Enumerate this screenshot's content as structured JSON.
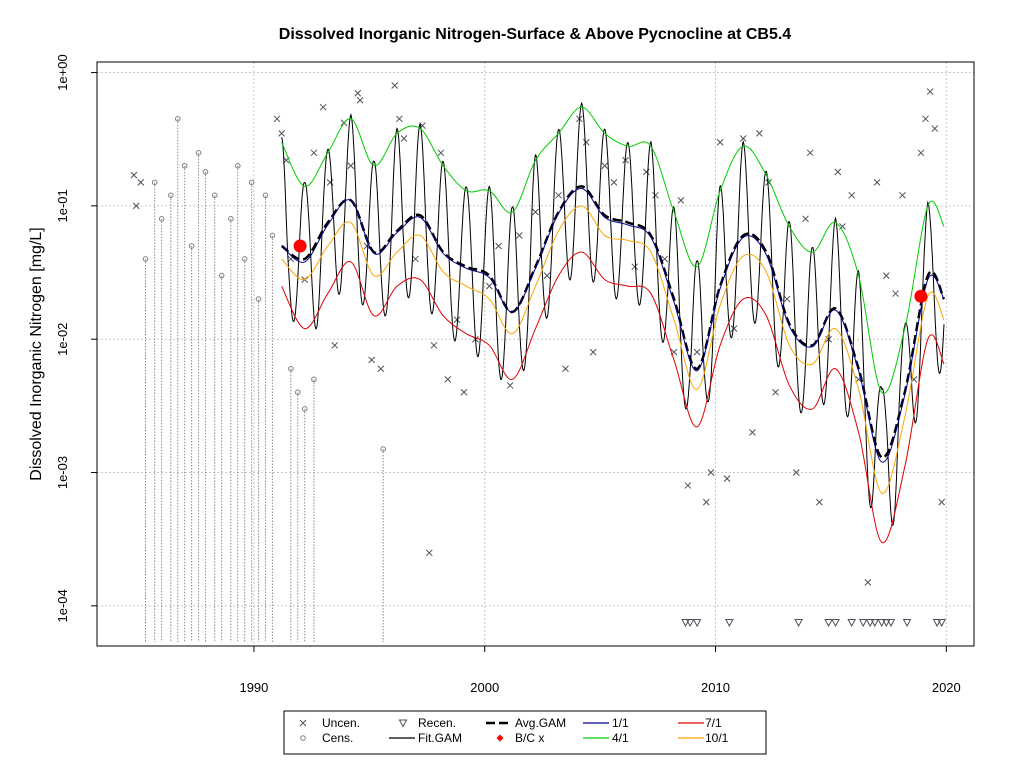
{
  "chart_data": {
    "type": "line",
    "title": "Dissolved Inorganic Nitrogen-Surface & Above Pycnocline at CB5.4",
    "xlabel": "",
    "ylabel": "Dissolved Inorganic Nitrogen [mg/L]",
    "xlim": [
      1983.2,
      2021.2
    ],
    "ylim": [
      5e-05,
      1.2
    ],
    "y_scale": "log",
    "grid": true,
    "legend_position": "bottom",
    "x_ticks": [
      1990,
      2000,
      2010,
      2020
    ],
    "x_tick_labels": [
      "1990",
      "2000",
      "2010",
      "2020"
    ],
    "y_ticks": [
      1,
      0.1,
      0.01,
      0.001,
      0.0001
    ],
    "y_tick_labels": [
      "1e+00",
      "1e-01",
      "1e-02",
      "1e-03",
      "1e-04"
    ],
    "colors": {
      "uncensored": "#505060",
      "censored": "#808080",
      "recensored": "#505060",
      "avg_gam": "#000000",
      "fit_gam": "#000000",
      "bc_points": "#ff0000",
      "q_1_1": "#00008b",
      "q_4_1": "#00cc00",
      "q_7_1": "#e00000",
      "q_10_1": "#ffa500"
    },
    "legend": [
      {
        "label": "Uncen.",
        "symbol": "x-icon"
      },
      {
        "label": "Cens.",
        "symbol": "circle-icon"
      },
      {
        "label": "Recen.",
        "symbol": "triangle-down-icon"
      },
      {
        "label": "Fit.GAM",
        "symbol": "line-icon"
      },
      {
        "label": "Avg.GAM",
        "symbol": "dashed-line-icon"
      },
      {
        "label": "B/C x",
        "symbol": "diamond-icon"
      },
      {
        "label": "1/1",
        "symbol": "line-icon"
      },
      {
        "label": "4/1",
        "symbol": "line-icon"
      },
      {
        "label": "7/1",
        "symbol": "line-icon"
      },
      {
        "label": "10/1",
        "symbol": "line-icon"
      }
    ],
    "bc_points": [
      {
        "x": 1992.0,
        "y": 0.05
      },
      {
        "x": 2018.9,
        "y": 0.021
      }
    ],
    "baseline_years": [
      1991.2,
      1992.2,
      1993.2,
      1994.2,
      1995.2,
      1996.2,
      1997.2,
      1998.2,
      1999.2,
      2000.2,
      2001.2,
      2002.2,
      2003.2,
      2004.2,
      2005.2,
      2006.2,
      2007.2,
      2008.2,
      2009.2,
      2010.2,
      2011.2,
      2012.2,
      2013.2,
      2014.2,
      2015.2,
      2016.2,
      2017.2,
      2018.2,
      2019.2,
      2019.9
    ],
    "series": [
      {
        "name": "Avg.GAM",
        "key": "avg",
        "x": [
          1991.2,
          1992.2,
          1993.2,
          1994.2,
          1995.2,
          1996.2,
          1997.2,
          1998.2,
          1999.2,
          2000.2,
          2001.2,
          2002.2,
          2003.2,
          2004.2,
          2005.2,
          2006.2,
          2007.2,
          2008.2,
          2009.2,
          2010.2,
          2011.2,
          2012.2,
          2013.2,
          2014.2,
          2015.2,
          2016.2,
          2017.2,
          2018.2,
          2019.2,
          2019.9
        ],
        "y": [
          0.05,
          0.04,
          0.075,
          0.11,
          0.045,
          0.065,
          0.085,
          0.045,
          0.035,
          0.03,
          0.016,
          0.035,
          0.09,
          0.14,
          0.085,
          0.075,
          0.06,
          0.02,
          0.006,
          0.025,
          0.06,
          0.045,
          0.013,
          0.009,
          0.017,
          0.006,
          0.0013,
          0.004,
          0.03,
          0.02
        ]
      },
      {
        "name": "1/1",
        "key": "q11",
        "x": [
          1991.2,
          1992.2,
          1993.2,
          1994.2,
          1995.2,
          1996.2,
          1997.2,
          1998.2,
          1999.2,
          2000.2,
          2001.2,
          2002.2,
          2003.2,
          2004.2,
          2005.2,
          2006.2,
          2007.2,
          2008.2,
          2009.2,
          2010.2,
          2011.2,
          2012.2,
          2013.2,
          2014.2,
          2015.2,
          2016.2,
          2017.2,
          2018.2,
          2019.2,
          2019.9
        ],
        "y": [
          0.05,
          0.038,
          0.072,
          0.11,
          0.044,
          0.063,
          0.082,
          0.044,
          0.034,
          0.029,
          0.016,
          0.034,
          0.088,
          0.135,
          0.082,
          0.072,
          0.058,
          0.019,
          0.0058,
          0.024,
          0.058,
          0.043,
          0.0125,
          0.0088,
          0.0165,
          0.0058,
          0.0012,
          0.0038,
          0.028,
          0.02
        ]
      },
      {
        "name": "4/1",
        "key": "q41",
        "x": [
          1991.2,
          1992.2,
          1993.2,
          1994.2,
          1995.2,
          1996.2,
          1997.2,
          1998.2,
          1999.2,
          2000.2,
          2001.2,
          2002.2,
          2003.2,
          2004.2,
          2005.2,
          2006.2,
          2007.2,
          2008.2,
          2009.2,
          2010.2,
          2011.2,
          2012.2,
          2013.2,
          2014.2,
          2015.2,
          2016.2,
          2017.2,
          2018.2,
          2019.2,
          2019.9
        ],
        "y": [
          0.3,
          0.14,
          0.25,
          0.45,
          0.2,
          0.35,
          0.38,
          0.2,
          0.13,
          0.13,
          0.09,
          0.22,
          0.35,
          0.55,
          0.35,
          0.28,
          0.28,
          0.09,
          0.035,
          0.13,
          0.28,
          0.17,
          0.07,
          0.045,
          0.075,
          0.03,
          0.004,
          0.012,
          0.1,
          0.07
        ]
      },
      {
        "name": "7/1",
        "key": "q71",
        "x": [
          1991.2,
          1992.2,
          1993.2,
          1994.2,
          1995.2,
          1996.2,
          1997.2,
          1998.2,
          1999.2,
          2000.2,
          2001.2,
          2002.2,
          2003.2,
          2004.2,
          2005.2,
          2006.2,
          2007.2,
          2008.2,
          2009.2,
          2010.2,
          2011.2,
          2012.2,
          2013.2,
          2014.2,
          2015.2,
          2016.2,
          2017.2,
          2018.2,
          2019.2,
          2019.9
        ],
        "y": [
          0.025,
          0.012,
          0.022,
          0.038,
          0.015,
          0.025,
          0.028,
          0.015,
          0.011,
          0.009,
          0.005,
          0.012,
          0.03,
          0.045,
          0.028,
          0.025,
          0.022,
          0.007,
          0.0022,
          0.009,
          0.02,
          0.015,
          0.0045,
          0.003,
          0.006,
          0.002,
          0.0003,
          0.0011,
          0.01,
          0.0065
        ]
      },
      {
        "name": "10/1",
        "key": "q101",
        "x": [
          1991.2,
          1992.2,
          1993.2,
          1994.2,
          1995.2,
          1996.2,
          1997.2,
          1998.2,
          1999.2,
          2000.2,
          2001.2,
          2002.2,
          2003.2,
          2004.2,
          2005.2,
          2006.2,
          2007.2,
          2008.2,
          2009.2,
          2010.2,
          2011.2,
          2012.2,
          2013.2,
          2014.2,
          2015.2,
          2016.2,
          2017.2,
          2018.2,
          2019.2,
          2019.9
        ],
        "y": [
          0.04,
          0.028,
          0.05,
          0.075,
          0.03,
          0.045,
          0.06,
          0.032,
          0.025,
          0.02,
          0.011,
          0.025,
          0.065,
          0.1,
          0.06,
          0.055,
          0.045,
          0.014,
          0.0042,
          0.018,
          0.042,
          0.032,
          0.009,
          0.0065,
          0.012,
          0.0042,
          0.0007,
          0.0026,
          0.021,
          0.014
        ]
      },
      {
        "name": "Fit.GAM",
        "key": "fit",
        "x": [],
        "y": []
      }
    ],
    "uncensored_points": [
      {
        "x": 1984.8,
        "y": 0.17
      },
      {
        "x": 1984.9,
        "y": 0.1
      },
      {
        "x": 1985.1,
        "y": 0.15
      },
      {
        "x": 1991.0,
        "y": 0.45
      },
      {
        "x": 1991.2,
        "y": 0.35
      },
      {
        "x": 1991.4,
        "y": 0.22
      },
      {
        "x": 1991.6,
        "y": 0.04
      },
      {
        "x": 1992.2,
        "y": 0.028
      },
      {
        "x": 1992.6,
        "y": 0.25
      },
      {
        "x": 1993.0,
        "y": 0.55
      },
      {
        "x": 1993.3,
        "y": 0.15
      },
      {
        "x": 1993.5,
        "y": 0.009
      },
      {
        "x": 1993.9,
        "y": 0.42
      },
      {
        "x": 1994.2,
        "y": 0.2
      },
      {
        "x": 1994.5,
        "y": 0.7
      },
      {
        "x": 1994.6,
        "y": 0.62
      },
      {
        "x": 1994.9,
        "y": 0.05
      },
      {
        "x": 1995.1,
        "y": 0.007
      },
      {
        "x": 1995.5,
        "y": 0.006
      },
      {
        "x": 1996.1,
        "y": 0.8
      },
      {
        "x": 1996.3,
        "y": 0.45
      },
      {
        "x": 1996.5,
        "y": 0.32
      },
      {
        "x": 1997.0,
        "y": 0.04
      },
      {
        "x": 1997.3,
        "y": 0.4
      },
      {
        "x": 1997.8,
        "y": 0.009
      },
      {
        "x": 1998.1,
        "y": 0.25
      },
      {
        "x": 1998.4,
        "y": 0.005
      },
      {
        "x": 1998.8,
        "y": 0.014
      },
      {
        "x": 1999.1,
        "y": 0.004
      },
      {
        "x": 1999.6,
        "y": 0.01
      },
      {
        "x": 2000.2,
        "y": 0.025
      },
      {
        "x": 2000.6,
        "y": 0.05
      },
      {
        "x": 2001.1,
        "y": 0.0045
      },
      {
        "x": 2001.5,
        "y": 0.06
      },
      {
        "x": 2002.2,
        "y": 0.09
      },
      {
        "x": 2002.7,
        "y": 0.03
      },
      {
        "x": 2003.2,
        "y": 0.12
      },
      {
        "x": 2003.5,
        "y": 0.006
      },
      {
        "x": 2004.1,
        "y": 0.45
      },
      {
        "x": 2004.4,
        "y": 0.3
      },
      {
        "x": 2004.7,
        "y": 0.008
      },
      {
        "x": 2005.2,
        "y": 0.2
      },
      {
        "x": 2005.6,
        "y": 0.15
      },
      {
        "x": 2006.1,
        "y": 0.22
      },
      {
        "x": 2006.5,
        "y": 0.035
      },
      {
        "x": 2007.0,
        "y": 0.18
      },
      {
        "x": 2007.4,
        "y": 0.12
      },
      {
        "x": 2007.8,
        "y": 0.04
      },
      {
        "x": 2008.2,
        "y": 0.008
      },
      {
        "x": 2008.5,
        "y": 0.11
      },
      {
        "x": 2008.8,
        "y": 0.0008
      },
      {
        "x": 2009.2,
        "y": 0.008
      },
      {
        "x": 2009.6,
        "y": 0.0006
      },
      {
        "x": 2009.8,
        "y": 0.001
      },
      {
        "x": 2010.2,
        "y": 0.3
      },
      {
        "x": 2010.5,
        "y": 0.0009
      },
      {
        "x": 2010.8,
        "y": 0.012
      },
      {
        "x": 2011.2,
        "y": 0.32
      },
      {
        "x": 2011.6,
        "y": 0.002
      },
      {
        "x": 2011.9,
        "y": 0.35
      },
      {
        "x": 2012.3,
        "y": 0.15
      },
      {
        "x": 2012.6,
        "y": 0.004
      },
      {
        "x": 2013.1,
        "y": 0.02
      },
      {
        "x": 2013.5,
        "y": 0.001
      },
      {
        "x": 2013.9,
        "y": 0.08
      },
      {
        "x": 2014.1,
        "y": 0.25
      },
      {
        "x": 2014.5,
        "y": 0.0006
      },
      {
        "x": 2014.9,
        "y": 0.01
      },
      {
        "x": 2015.3,
        "y": 0.18
      },
      {
        "x": 2015.5,
        "y": 0.07
      },
      {
        "x": 2015.9,
        "y": 0.12
      },
      {
        "x": 2016.2,
        "y": 0.005
      },
      {
        "x": 2016.6,
        "y": 0.00015
      },
      {
        "x": 2017.0,
        "y": 0.15
      },
      {
        "x": 2017.4,
        "y": 0.03
      },
      {
        "x": 2017.8,
        "y": 0.022
      },
      {
        "x": 2018.1,
        "y": 0.12
      },
      {
        "x": 2018.6,
        "y": 0.005
      },
      {
        "x": 2018.9,
        "y": 0.25
      },
      {
        "x": 2019.1,
        "y": 0.45
      },
      {
        "x": 2019.3,
        "y": 0.72
      },
      {
        "x": 2019.5,
        "y": 0.38
      },
      {
        "x": 2019.8,
        "y": 0.0006
      },
      {
        "x": 1997.6,
        "y": 0.00025
      }
    ],
    "censored_points": [
      {
        "x": 1985.7,
        "y": 0.15
      },
      {
        "x": 1986.0,
        "y": 0.08
      },
      {
        "x": 1986.4,
        "y": 0.12
      },
      {
        "x": 1986.7,
        "y": 0.45
      },
      {
        "x": 1987.0,
        "y": 0.2
      },
      {
        "x": 1987.3,
        "y": 0.05
      },
      {
        "x": 1987.6,
        "y": 0.25
      },
      {
        "x": 1987.9,
        "y": 0.18
      },
      {
        "x": 1988.3,
        "y": 0.12
      },
      {
        "x": 1988.6,
        "y": 0.03
      },
      {
        "x": 1989.0,
        "y": 0.08
      },
      {
        "x": 1989.3,
        "y": 0.2
      },
      {
        "x": 1989.6,
        "y": 0.04
      },
      {
        "x": 1989.9,
        "y": 0.15
      },
      {
        "x": 1990.2,
        "y": 0.02
      },
      {
        "x": 1990.5,
        "y": 0.12
      },
      {
        "x": 1990.8,
        "y": 0.06
      },
      {
        "x": 1991.6,
        "y": 0.006
      },
      {
        "x": 1991.9,
        "y": 0.004
      },
      {
        "x": 1992.2,
        "y": 0.003
      },
      {
        "x": 1992.6,
        "y": 0.005
      },
      {
        "x": 1995.6,
        "y": 0.0015
      },
      {
        "x": 1985.3,
        "y": 0.04
      }
    ],
    "recensored_points": [
      {
        "x": 2008.7,
        "y": 7.5e-05
      },
      {
        "x": 2008.9,
        "y": 7.5e-05
      },
      {
        "x": 2009.2,
        "y": 7.5e-05
      },
      {
        "x": 2010.6,
        "y": 7.5e-05
      },
      {
        "x": 2013.6,
        "y": 7.5e-05
      },
      {
        "x": 2014.9,
        "y": 7.5e-05
      },
      {
        "x": 2015.2,
        "y": 7.5e-05
      },
      {
        "x": 2015.9,
        "y": 7.5e-05
      },
      {
        "x": 2016.4,
        "y": 7.5e-05
      },
      {
        "x": 2016.7,
        "y": 7.5e-05
      },
      {
        "x": 2016.9,
        "y": 7.5e-05
      },
      {
        "x": 2017.2,
        "y": 7.5e-05
      },
      {
        "x": 2017.4,
        "y": 7.5e-05
      },
      {
        "x": 2017.6,
        "y": 7.5e-05
      },
      {
        "x": 2018.3,
        "y": 7.5e-05
      },
      {
        "x": 2019.6,
        "y": 7.5e-05
      },
      {
        "x": 2019.8,
        "y": 7.5e-05
      }
    ]
  }
}
